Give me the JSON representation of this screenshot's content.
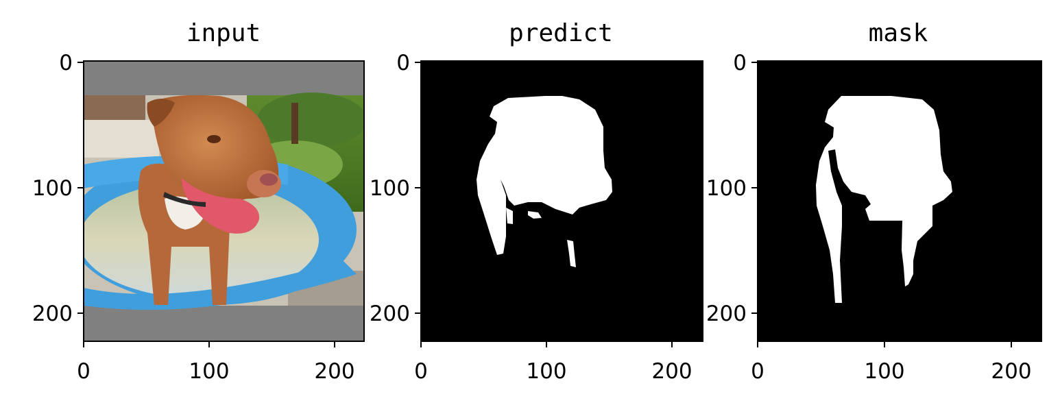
{
  "chart_data": [
    {
      "type": "image",
      "title": "input",
      "xlim": [
        0,
        224
      ],
      "ylim": [
        224,
        0
      ],
      "xticks": [
        0,
        100,
        200
      ],
      "yticks": [
        0,
        100,
        200
      ],
      "xtick_labels": [
        "0",
        "100",
        "200"
      ],
      "ytick_labels": [
        "0",
        "100",
        "200"
      ],
      "content": "photo of a brown dog standing in a blue wading pool",
      "padding_band_color": "#808080",
      "photo_rows": [
        27,
        195
      ]
    },
    {
      "type": "image",
      "title": "predict",
      "xlim": [
        0,
        224
      ],
      "ylim": [
        224,
        0
      ],
      "xticks": [
        0,
        100,
        200
      ],
      "yticks": [
        0,
        100,
        200
      ],
      "xtick_labels": [
        "0",
        "100",
        "200"
      ],
      "ytick_labels": [
        "0",
        "100",
        "200"
      ],
      "content": "binary segmentation mask (white foreground on black)",
      "background_color": "#000000",
      "foreground_color": "#ffffff"
    },
    {
      "type": "image",
      "title": "mask",
      "xlim": [
        0,
        224
      ],
      "ylim": [
        224,
        0
      ],
      "xticks": [
        0,
        100,
        200
      ],
      "yticks": [
        0,
        100,
        200
      ],
      "xtick_labels": [
        "0",
        "100",
        "200"
      ],
      "ytick_labels": [
        "0",
        "100",
        "200"
      ],
      "content": "binary ground-truth mask (white foreground on black)",
      "background_color": "#000000",
      "foreground_color": "#ffffff"
    }
  ]
}
